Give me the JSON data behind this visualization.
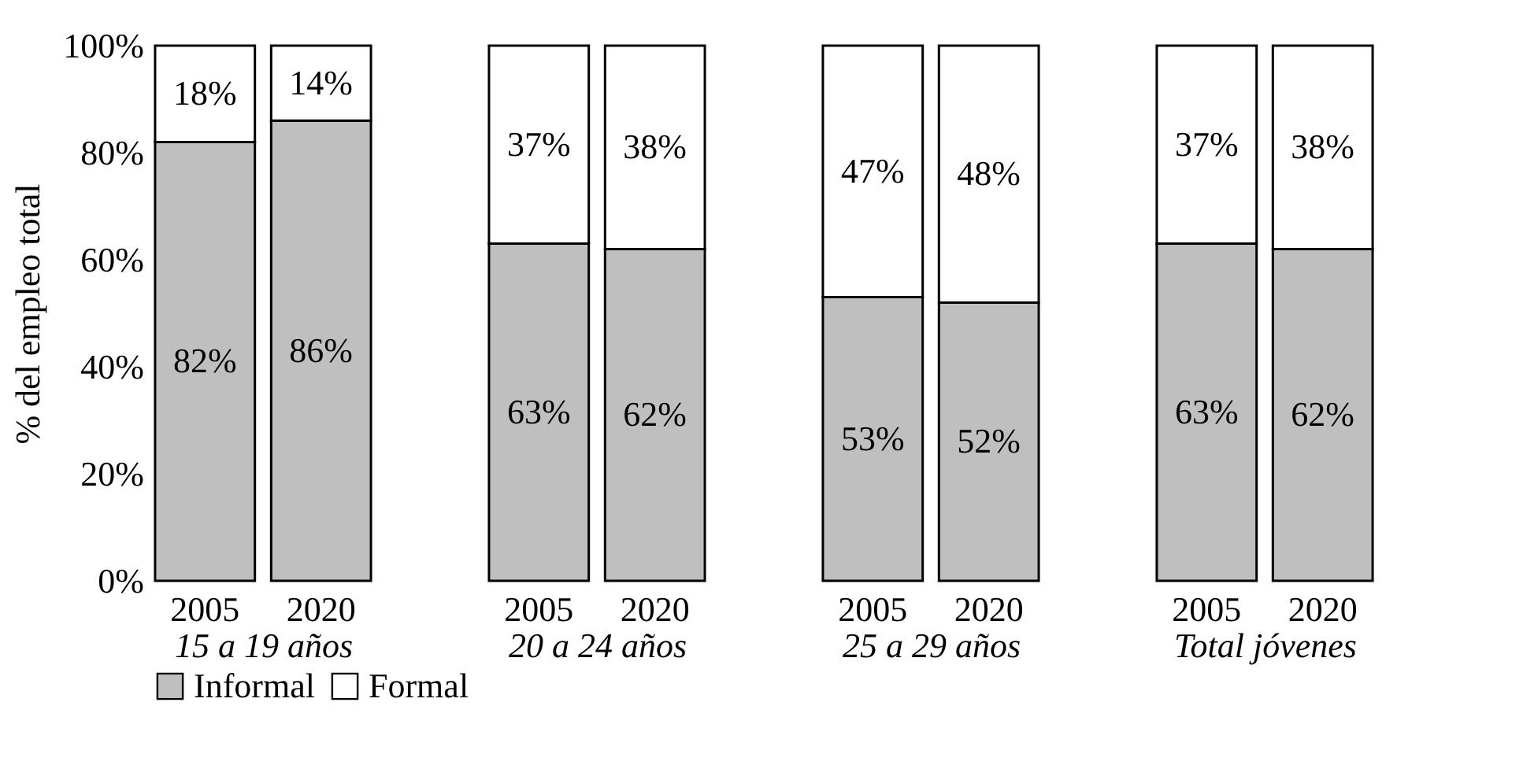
{
  "chart_data": [
    {
      "type": "bar",
      "stacked": true,
      "categories": [
        "2005",
        "2020"
      ],
      "xlabel": "15 a 19 años",
      "ylabel": "% del empleo total",
      "ylim": [
        0,
        100
      ],
      "yticks": [
        {
          "value": 0,
          "label": "0%"
        },
        {
          "value": 20,
          "label": "20%"
        },
        {
          "value": 40,
          "label": "40%"
        },
        {
          "value": 60,
          "label": "60%"
        },
        {
          "value": 80,
          "label": "80%"
        },
        {
          "value": 100,
          "label": "100%"
        }
      ],
      "legend": "bottom",
      "series": [
        {
          "name": "Informal",
          "color": "#bfbfbf",
          "values": [
            82,
            86
          ],
          "value_labels": [
            "82%",
            "86%"
          ]
        },
        {
          "name": "Formal",
          "color": "#ffffff",
          "values": [
            18,
            14
          ],
          "value_labels": [
            "18%",
            "14%"
          ]
        }
      ]
    },
    {
      "type": "bar",
      "stacked": true,
      "categories": [
        "2005",
        "2020"
      ],
      "xlabel": "20 a 24 años",
      "ylim": [
        0,
        100
      ],
      "tick_labels": "x",
      "series": [
        {
          "name": "Informal",
          "color": "#bfbfbf",
          "values": [
            63,
            62
          ],
          "value_labels": [
            "63%",
            "62%"
          ]
        },
        {
          "name": "Formal",
          "color": "#ffffff",
          "values": [
            37,
            38
          ],
          "value_labels": [
            "37%",
            "38%"
          ]
        }
      ]
    },
    {
      "type": "bar",
      "stacked": true,
      "categories": [
        "2005",
        "2020"
      ],
      "xlabel": "25 a 29 años",
      "ylim": [
        0,
        100
      ],
      "tick_labels": "x",
      "series": [
        {
          "name": "Informal",
          "color": "#bfbfbf",
          "values": [
            53,
            52
          ],
          "value_labels": [
            "53%",
            "52%"
          ]
        },
        {
          "name": "Formal",
          "color": "#ffffff",
          "values": [
            47,
            48
          ],
          "value_labels": [
            "47%",
            "48%"
          ]
        }
      ]
    },
    {
      "type": "bar",
      "stacked": true,
      "categories": [
        "2005",
        "2020"
      ],
      "xlabel": "Total jóvenes",
      "ylim": [
        0,
        100
      ],
      "tick_labels": "x",
      "series": [
        {
          "name": "Informal",
          "color": "#bfbfbf",
          "values": [
            63,
            62
          ],
          "value_labels": [
            "63%",
            "62%"
          ]
        },
        {
          "name": "Formal",
          "color": "#ffffff",
          "values": [
            37,
            38
          ],
          "value_labels": [
            "37%",
            "38%"
          ]
        }
      ]
    }
  ]
}
